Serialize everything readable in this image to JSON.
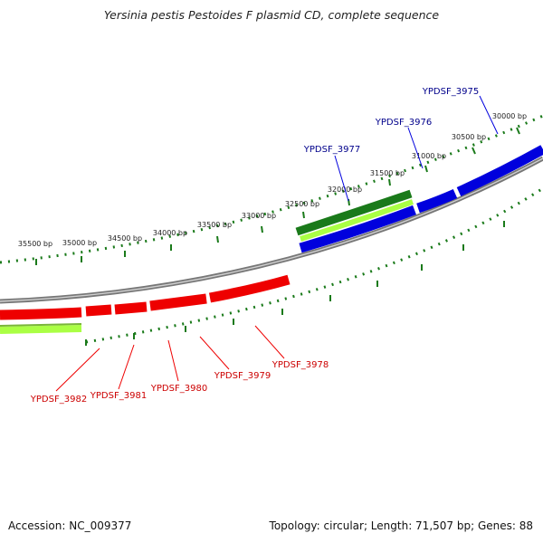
{
  "title": "Yersinia pestis Pestoides F plasmid CD, complete sequence",
  "footer": {
    "accession": "Accession: NC_009377",
    "summary": "Topology: circular; Length: 71,507 bp; Genes: 88"
  },
  "colors": {
    "forward_gene": "#0000dd",
    "reverse_gene": "#ee0000",
    "forward_track": "#1a7a1a",
    "forward_track_light": "#aaff44",
    "reverse_track": "#aaff44",
    "backbone": "#888888",
    "ticks": "#1a7a1a",
    "forward_label": "#00008b",
    "reverse_label": "#cc0000"
  },
  "scale_labels": [
    "30000 bp",
    "30500 bp",
    "31000 bp",
    "31500 bp",
    "32000 bp",
    "32500 bp",
    "33000 bp",
    "33500 bp",
    "34000 bp",
    "34500 bp",
    "35000 bp",
    "35500 bp"
  ],
  "forward_genes": [
    {
      "label": "YPDSF_3975"
    },
    {
      "label": "YPDSF_3976"
    },
    {
      "label": "YPDSF_3977"
    }
  ],
  "reverse_genes": [
    {
      "label": "YPDSF_3978"
    },
    {
      "label": "YPDSF_3979"
    },
    {
      "label": "YPDSF_3980"
    },
    {
      "label": "YPDSF_3981"
    },
    {
      "label": "YPDSF_3982"
    }
  ]
}
